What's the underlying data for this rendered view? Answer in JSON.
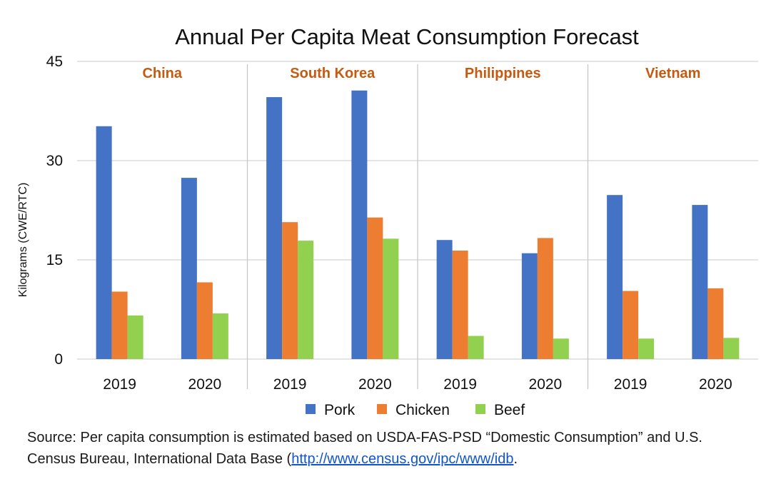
{
  "chart_data": {
    "type": "bar",
    "title": "Annual Per Capita Meat Consumption Forecast",
    "ylabel": "Kilograms (CWE/RTC)",
    "ylim": [
      0,
      45
    ],
    "yticks": [
      "0",
      "15",
      "30",
      "45"
    ],
    "groups": [
      "China",
      "South Korea",
      "Philippines",
      "Vietnam"
    ],
    "categories": [
      "2019",
      "2020",
      "2019",
      "2020",
      "2019",
      "2020",
      "2019",
      "2020"
    ],
    "series": [
      {
        "name": "Pork",
        "color": "#4472c4",
        "values": [
          35.2,
          27.4,
          39.6,
          40.6,
          18.0,
          16.0,
          24.8,
          23.3
        ]
      },
      {
        "name": "Chicken",
        "color": "#ed7d31",
        "values": [
          10.2,
          11.6,
          20.7,
          21.4,
          16.4,
          18.3,
          10.3,
          10.7
        ]
      },
      {
        "name": "Beef",
        "color": "#92d050",
        "values": [
          6.6,
          6.9,
          17.9,
          18.2,
          3.5,
          3.1,
          3.1,
          3.2
        ]
      }
    ],
    "grid": true,
    "legend_position": "bottom",
    "group_label_color": "#c55a11"
  },
  "source": {
    "text_before_link": "Source: Per capita consumption is estimated based on USDA-FAS-PSD “Domestic Consumption” and U.S. Census Bureau, International Data Base (",
    "link_text": "http://www.census.gov/ipc/www/idb",
    "text_after_link": "."
  }
}
